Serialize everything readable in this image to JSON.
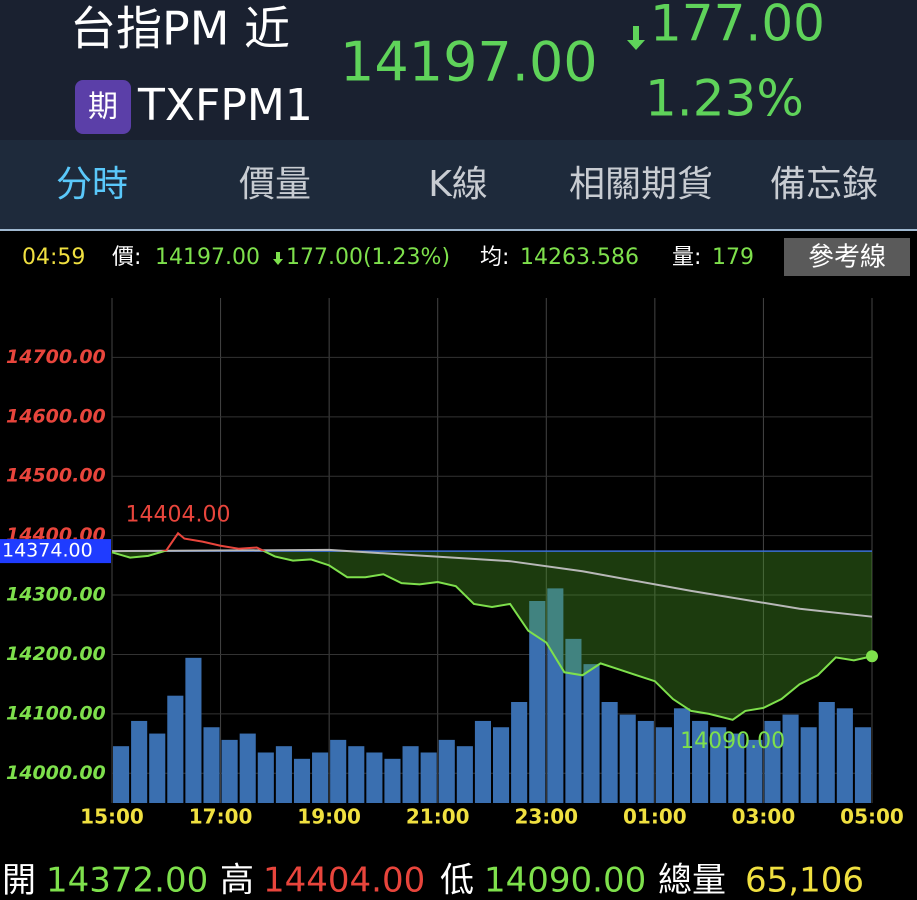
{
  "header": {
    "title": "台指PM 近",
    "badge": "期",
    "symbol": "TXFPM1",
    "price": "14197.00",
    "change": "177.00",
    "change_pct": "1.23%"
  },
  "tabs": [
    "分時",
    "價量",
    "K線",
    "相關期貨",
    "備忘錄"
  ],
  "info_bar": {
    "time": "04:59",
    "price_label": "價:",
    "price": "14197.00",
    "change": "177.00(1.23%)",
    "avg_label": "均:",
    "avg": "14263.586",
    "vol_label": "量:",
    "vol": "179",
    "button": "參考線"
  },
  "chart_data": {
    "type": "line",
    "xlim": [
      0,
      840
    ],
    "ylim": [
      13950,
      14800
    ],
    "y2lim": [
      0,
      8000
    ],
    "xticks": [
      {
        "value": 0,
        "label": "15:00"
      },
      {
        "value": 120,
        "label": "17:00"
      },
      {
        "value": 240,
        "label": "19:00"
      },
      {
        "value": 360,
        "label": "21:00"
      },
      {
        "value": 480,
        "label": "23:00"
      },
      {
        "value": 600,
        "label": "01:00"
      },
      {
        "value": 720,
        "label": "03:00"
      },
      {
        "value": 840,
        "label": "05:00"
      }
    ],
    "yticks": [
      {
        "value": 14000,
        "label": "14000.00"
      },
      {
        "value": 14100,
        "label": "14100.00"
      },
      {
        "value": 14200,
        "label": "14200.00"
      },
      {
        "value": 14300,
        "label": "14300.00"
      },
      {
        "value": 14400,
        "label": "14400.00"
      },
      {
        "value": 14500,
        "label": "14500.00"
      },
      {
        "value": 14600,
        "label": "14600.00"
      },
      {
        "value": 14700,
        "label": "14700.00"
      }
    ],
    "reference": {
      "value": 14374,
      "label": "14374.00"
    },
    "up_color": "#e8453c",
    "down_color": "#7ee04c",
    "grid": true,
    "series": [
      {
        "name": "價",
        "color": "#7ee04c",
        "x": [
          0,
          20,
          40,
          60,
          73,
          80,
          100,
          120,
          140,
          160,
          180,
          200,
          220,
          240,
          260,
          280,
          300,
          320,
          340,
          360,
          380,
          400,
          420,
          440,
          460,
          480,
          500,
          520,
          540,
          560,
          580,
          600,
          620,
          640,
          660,
          686,
          700,
          720,
          740,
          760,
          780,
          800,
          820,
          840
        ],
        "values": [
          14372,
          14363,
          14366,
          14375,
          14404,
          14395,
          14390,
          14383,
          14378,
          14380,
          14365,
          14358,
          14360,
          14350,
          14330,
          14330,
          14335,
          14320,
          14318,
          14322,
          14315,
          14285,
          14280,
          14285,
          14240,
          14220,
          14170,
          14165,
          14185,
          14175,
          14165,
          14155,
          14125,
          14105,
          14100,
          14090,
          14105,
          14110,
          14125,
          14150,
          14165,
          14195,
          14190,
          14197
        ]
      },
      {
        "name": "均",
        "color": "#b8b8b8",
        "x": [
          0,
          240,
          440,
          520,
          640,
          760,
          840
        ],
        "values": [
          14374,
          14376,
          14357,
          14340,
          14307,
          14277,
          14263.586
        ]
      },
      {
        "name": "量",
        "color": "#3a6fb0",
        "axis": "y2",
        "x": [
          0,
          20,
          40,
          60,
          80,
          100,
          120,
          140,
          160,
          180,
          200,
          220,
          240,
          260,
          280,
          300,
          320,
          340,
          360,
          380,
          400,
          420,
          440,
          460,
          480,
          500,
          520,
          540,
          560,
          580,
          600,
          620,
          640,
          660,
          680,
          700,
          720,
          740,
          760,
          780,
          800,
          820
        ],
        "values": [
          900,
          1300,
          1100,
          1700,
          2300,
          1200,
          1000,
          1100,
          800,
          900,
          700,
          800,
          1000,
          900,
          800,
          700,
          900,
          800,
          1000,
          900,
          1300,
          1200,
          1600,
          3200,
          3400,
          2600,
          2200,
          1600,
          1400,
          1300,
          1200,
          1500,
          1300,
          1200,
          1100,
          1000,
          1300,
          1400,
          1200,
          1600,
          1500,
          1200
        ]
      }
    ],
    "annotations": [
      {
        "label": "14404.00",
        "value": 14404,
        "x": 73
      },
      {
        "label": "14090.00",
        "value": 14090,
        "x": 686
      }
    ]
  },
  "footer": {
    "open_label": "開",
    "open": "14372.00",
    "high_label": "高",
    "high": "14404.00",
    "low_label": "低",
    "low": "14090.00",
    "vol_label": "總量",
    "vol": "65,106"
  }
}
